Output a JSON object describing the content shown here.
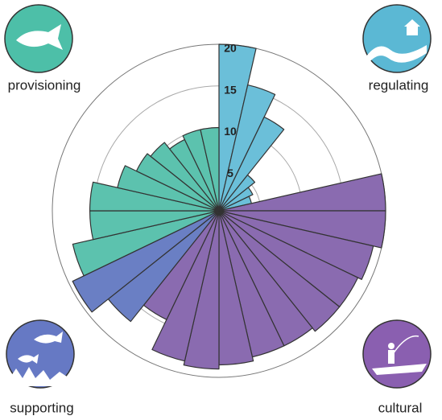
{
  "chart_data": {
    "type": "polar-bar",
    "series": [
      {
        "name": "regulating",
        "color": "#6bbfd9",
        "values": [
          20,
          15.5,
          12.5,
          5.5,
          4.5,
          4
        ]
      },
      {
        "name": "cultural",
        "color": "#8a6bb0",
        "values": [
          20,
          20,
          19,
          18.5,
          18.5,
          18,
          18,
          18.5,
          19,
          18.5,
          14.5
        ]
      },
      {
        "name": "supporting",
        "color": "#6a7fc4",
        "values": [
          17,
          19.5
        ]
      },
      {
        "name": "provisioning",
        "color": "#5cc2ae",
        "values": [
          18,
          15.5,
          15.5,
          12.5,
          11,
          10.5,
          9.5,
          10,
          10
        ]
      }
    ],
    "ylim": [
      0,
      20
    ],
    "yticks": [
      5,
      10,
      15,
      20
    ],
    "grid": true
  }
}
